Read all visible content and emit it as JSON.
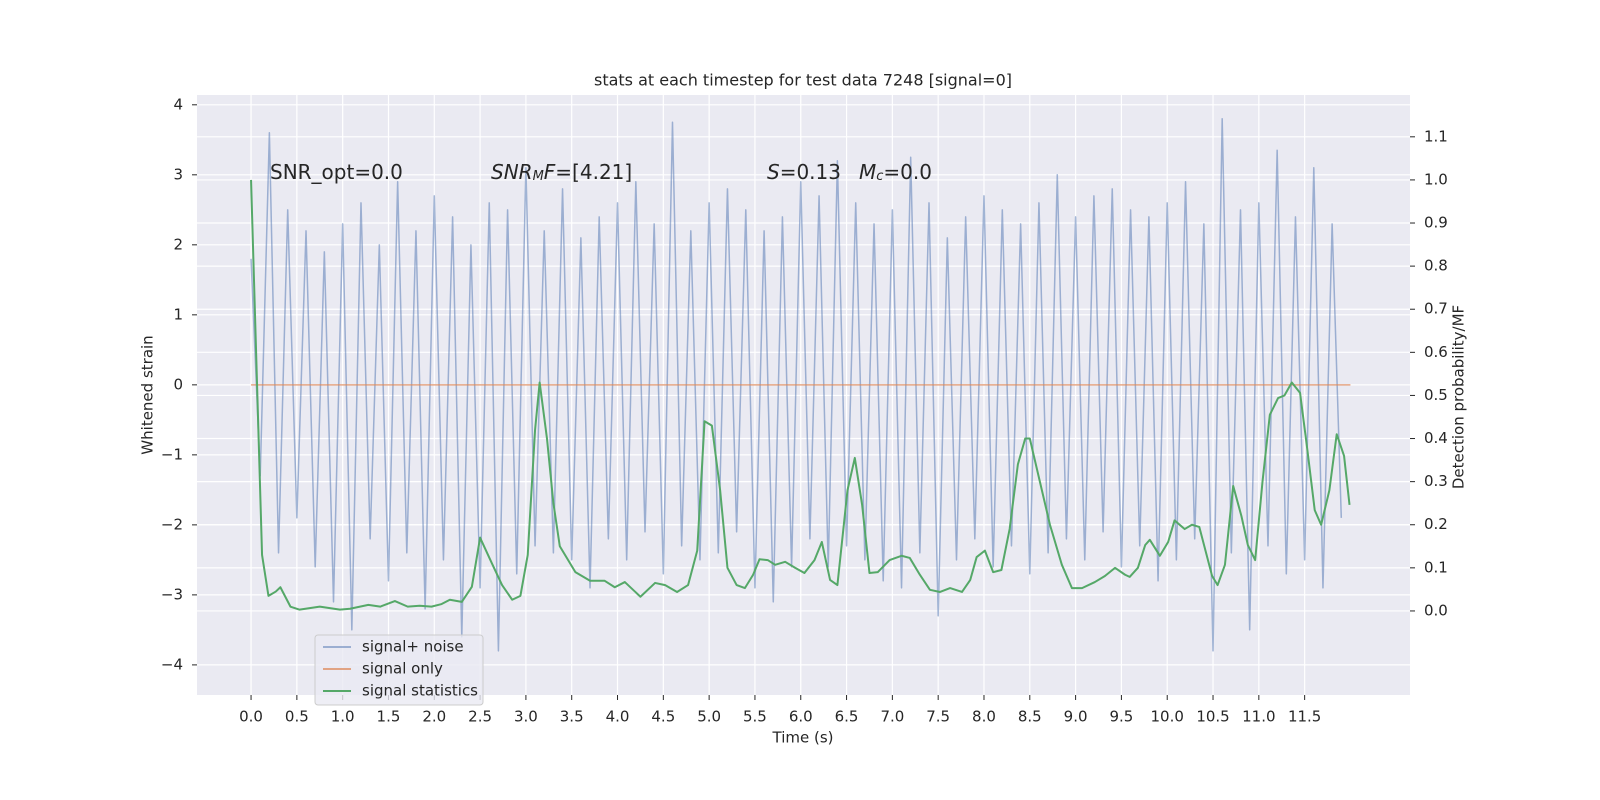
{
  "chart_data": {
    "type": "line",
    "title": "stats at each timestep for test data 7248 [signal=0]",
    "x_label": "Time (s)",
    "y_label": "Whitened strain",
    "y2_label": "Detection probability/MF",
    "xlim": [
      -0.59,
      12.65
    ],
    "ylim": [
      -4.43,
      4.14
    ],
    "y2lim": [
      -0.195,
      1.197
    ],
    "xticks": [
      {
        "value": 0,
        "label": "0.0"
      },
      0.5,
      {
        "value": 1,
        "label": "1.0"
      },
      1.5,
      {
        "value": 2,
        "label": "2.0"
      },
      2.5,
      {
        "value": 3,
        "label": "3.0"
      },
      3.5,
      {
        "value": 4,
        "label": "4.0"
      },
      4.5,
      {
        "value": 5,
        "label": "5.0"
      },
      5.5,
      {
        "value": 6,
        "label": "6.0"
      },
      6.5,
      {
        "value": 7,
        "label": "7.0"
      },
      7.5,
      {
        "value": 8,
        "label": "8.0"
      },
      8.5,
      {
        "value": 9,
        "label": "9.0"
      },
      9.5,
      {
        "value": 10,
        "label": "10.0"
      },
      10.5,
      {
        "value": 11,
        "label": "11.0"
      },
      11.5
    ],
    "yticks": [
      {
        "value": -4,
        "label": "−4"
      },
      {
        "value": -3,
        "label": "−3"
      },
      {
        "value": -2,
        "label": "−2"
      },
      {
        "value": -1,
        "label": "−1"
      },
      0,
      1,
      2,
      3,
      4
    ],
    "y2ticks": [
      {
        "value": 0,
        "label": "0.0"
      },
      0.1,
      0.2,
      0.3,
      0.4,
      0.5,
      0.6,
      0.7,
      0.8,
      0.9,
      {
        "value": 1,
        "label": "1.0"
      },
      1.1
    ],
    "grid": true,
    "legend": "lower left",
    "annotations": [
      [
        {
          "text": "SNR_opt=0.0"
        }
      ],
      [
        {
          "text": "SNR",
          "italic": true
        },
        {
          "text": "M",
          "italic": true,
          "sub": true
        },
        {
          "text": "F",
          "italic": true
        },
        {
          "text": "=[4.21]"
        }
      ],
      [
        {
          "text": "S",
          "italic": true
        },
        {
          "text": "=0.13"
        }
      ],
      [
        {
          "text": "M",
          "italic": true
        },
        {
          "text": "c",
          "italic": true,
          "sub": true
        },
        {
          "text": "=0.0"
        }
      ]
    ],
    "series": [
      {
        "name": "signal+ noise",
        "color": "#4c72b0",
        "opacity": 0.5,
        "x": [
          0,
          0.1,
          0.2,
          0.3,
          0.4,
          0.5,
          0.6,
          0.7,
          0.8,
          0.9,
          1,
          1.1,
          1.2,
          1.3,
          1.4,
          1.5,
          1.6,
          1.7,
          1.8,
          1.9,
          2,
          2.1,
          2.2,
          2.3,
          2.4,
          2.5,
          2.6,
          2.7,
          2.8,
          2.9,
          3,
          3.1,
          3.2,
          3.3,
          3.4,
          3.5,
          3.6,
          3.7,
          3.8,
          3.9,
          4,
          4.1,
          4.2,
          4.3,
          4.4,
          4.5,
          4.6,
          4.7,
          4.8,
          4.9,
          5,
          5.1,
          5.2,
          5.3,
          5.4,
          5.5,
          5.6,
          5.7,
          5.8,
          5.9,
          6,
          6.1,
          6.2,
          6.3,
          6.4,
          6.5,
          6.6,
          6.7,
          6.8,
          6.9,
          7,
          7.1,
          7.2,
          7.3,
          7.4,
          7.5,
          7.6,
          7.7,
          7.8,
          7.9,
          8,
          8.1,
          8.2,
          8.3,
          8.4,
          8.5,
          8.6,
          8.7,
          8.8,
          8.9,
          9,
          9.1,
          9.2,
          9.3,
          9.4,
          9.5,
          9.6,
          9.7,
          9.8,
          9.9,
          10,
          10.1,
          10.2,
          10.3,
          10.4,
          10.5,
          10.6,
          10.7,
          10.8,
          10.9,
          11,
          11.1,
          11.2,
          11.3,
          11.4,
          11.5,
          11.6,
          11.7,
          11.8,
          11.9
        ],
        "values": [
          1.8,
          -1.3,
          3.6,
          -2.4,
          2.5,
          -1.9,
          2.2,
          -2.6,
          1.9,
          -3.1,
          2.3,
          -3.5,
          2.6,
          -2.2,
          2.0,
          -2.8,
          2.9,
          -2.4,
          2.2,
          -3.2,
          2.7,
          -2.5,
          2.4,
          -3.6,
          2.0,
          -2.9,
          2.6,
          -3.8,
          2.5,
          -2.7,
          3.1,
          -2.3,
          2.2,
          -2.4,
          2.8,
          -2.5,
          2.1,
          -2.9,
          2.4,
          -2.2,
          2.6,
          -2.5,
          2.9,
          -2.1,
          2.3,
          -2.7,
          3.75,
          -2.3,
          2.2,
          -2.5,
          2.6,
          -2.4,
          2.8,
          -2.1,
          2.5,
          -2.9,
          2.2,
          -3.1,
          2.4,
          -2.6,
          2.9,
          -2.2,
          2.7,
          -2.6,
          3.2,
          -2.3,
          2.6,
          -2.5,
          2.3,
          -2.8,
          2.5,
          -2.9,
          3.25,
          -2.4,
          2.6,
          -3.3,
          2.1,
          -2.5,
          2.4,
          -2.2,
          2.7,
          -2.6,
          2.5,
          -2.3,
          2.3,
          -2.7,
          2.6,
          -2.4,
          3.0,
          -2.2,
          2.4,
          -2.5,
          2.7,
          -2.1,
          2.8,
          -2.6,
          2.5,
          -2.3,
          2.4,
          -2.8,
          2.6,
          -2.5,
          2.9,
          -2.2,
          2.3,
          -3.8,
          3.8,
          -2.4,
          2.5,
          -3.5,
          2.6,
          -2.3,
          3.35,
          -2.7,
          2.4,
          -2.5,
          3.1,
          -2.9,
          2.3,
          -1.9
        ]
      },
      {
        "name": "signal only",
        "color": "#dd8452",
        "opacity": 0.7,
        "x": [
          0,
          12
        ],
        "values": [
          0,
          0
        ]
      },
      {
        "name": "signal statistics",
        "color": "#55a868",
        "axis": "y2",
        "x": [
          0,
          0.12,
          0.19,
          0.27,
          0.32,
          0.43,
          0.53,
          0.75,
          0.97,
          1.08,
          1.28,
          1.41,
          1.57,
          1.71,
          1.84,
          1.97,
          2.08,
          2.17,
          2.3,
          2.41,
          2.5,
          2.63,
          2.74,
          2.85,
          2.94,
          3.02,
          3.1,
          3.15,
          3.23,
          3.3,
          3.37,
          3.54,
          3.7,
          3.86,
          3.97,
          4.08,
          4.25,
          4.41,
          4.52,
          4.65,
          4.77,
          4.87,
          4.95,
          5.03,
          5.12,
          5.2,
          5.3,
          5.39,
          5.48,
          5.55,
          5.64,
          5.72,
          5.83,
          5.94,
          6.04,
          6.15,
          6.23,
          6.32,
          6.4,
          6.51,
          6.59,
          6.67,
          6.75,
          6.84,
          6.97,
          7.1,
          7.19,
          7.3,
          7.41,
          7.52,
          7.63,
          7.76,
          7.85,
          7.92,
          8.01,
          8.1,
          8.19,
          8.28,
          8.37,
          8.45,
          8.5,
          8.61,
          8.72,
          8.85,
          8.96,
          9.07,
          9.21,
          9.32,
          9.43,
          9.54,
          9.59,
          9.68,
          9.76,
          9.81,
          9.92,
          10.01,
          10.08,
          10.19,
          10.27,
          10.35,
          10.49,
          10.55,
          10.63,
          10.72,
          10.81,
          10.88,
          10.96,
          11.04,
          11.12,
          11.21,
          11.28,
          11.36,
          11.45,
          11.53,
          11.61,
          11.68,
          11.77,
          11.85,
          11.93,
          11.99
        ],
        "values": [
          1.0,
          0.13,
          0.035,
          0.045,
          0.055,
          0.01,
          0.003,
          0.01,
          0.003,
          0.005,
          0.014,
          0.01,
          0.023,
          0.01,
          0.012,
          0.01,
          0.016,
          0.026,
          0.021,
          0.056,
          0.17,
          0.11,
          0.06,
          0.026,
          0.035,
          0.13,
          0.42,
          0.53,
          0.4,
          0.25,
          0.15,
          0.09,
          0.07,
          0.07,
          0.055,
          0.067,
          0.033,
          0.065,
          0.06,
          0.044,
          0.06,
          0.14,
          0.44,
          0.43,
          0.28,
          0.1,
          0.06,
          0.053,
          0.084,
          0.12,
          0.118,
          0.107,
          0.114,
          0.1,
          0.088,
          0.118,
          0.16,
          0.072,
          0.06,
          0.28,
          0.355,
          0.246,
          0.088,
          0.09,
          0.118,
          0.128,
          0.123,
          0.084,
          0.049,
          0.044,
          0.053,
          0.044,
          0.072,
          0.125,
          0.14,
          0.09,
          0.095,
          0.19,
          0.34,
          0.4,
          0.4,
          0.3,
          0.2,
          0.107,
          0.053,
          0.053,
          0.067,
          0.081,
          0.1,
          0.084,
          0.079,
          0.1,
          0.153,
          0.165,
          0.128,
          0.16,
          0.21,
          0.19,
          0.2,
          0.195,
          0.081,
          0.06,
          0.107,
          0.29,
          0.22,
          0.153,
          0.118,
          0.3,
          0.455,
          0.494,
          0.5,
          0.53,
          0.506,
          0.373,
          0.234,
          0.2,
          0.28,
          0.41,
          0.36,
          0.246
        ]
      }
    ]
  }
}
